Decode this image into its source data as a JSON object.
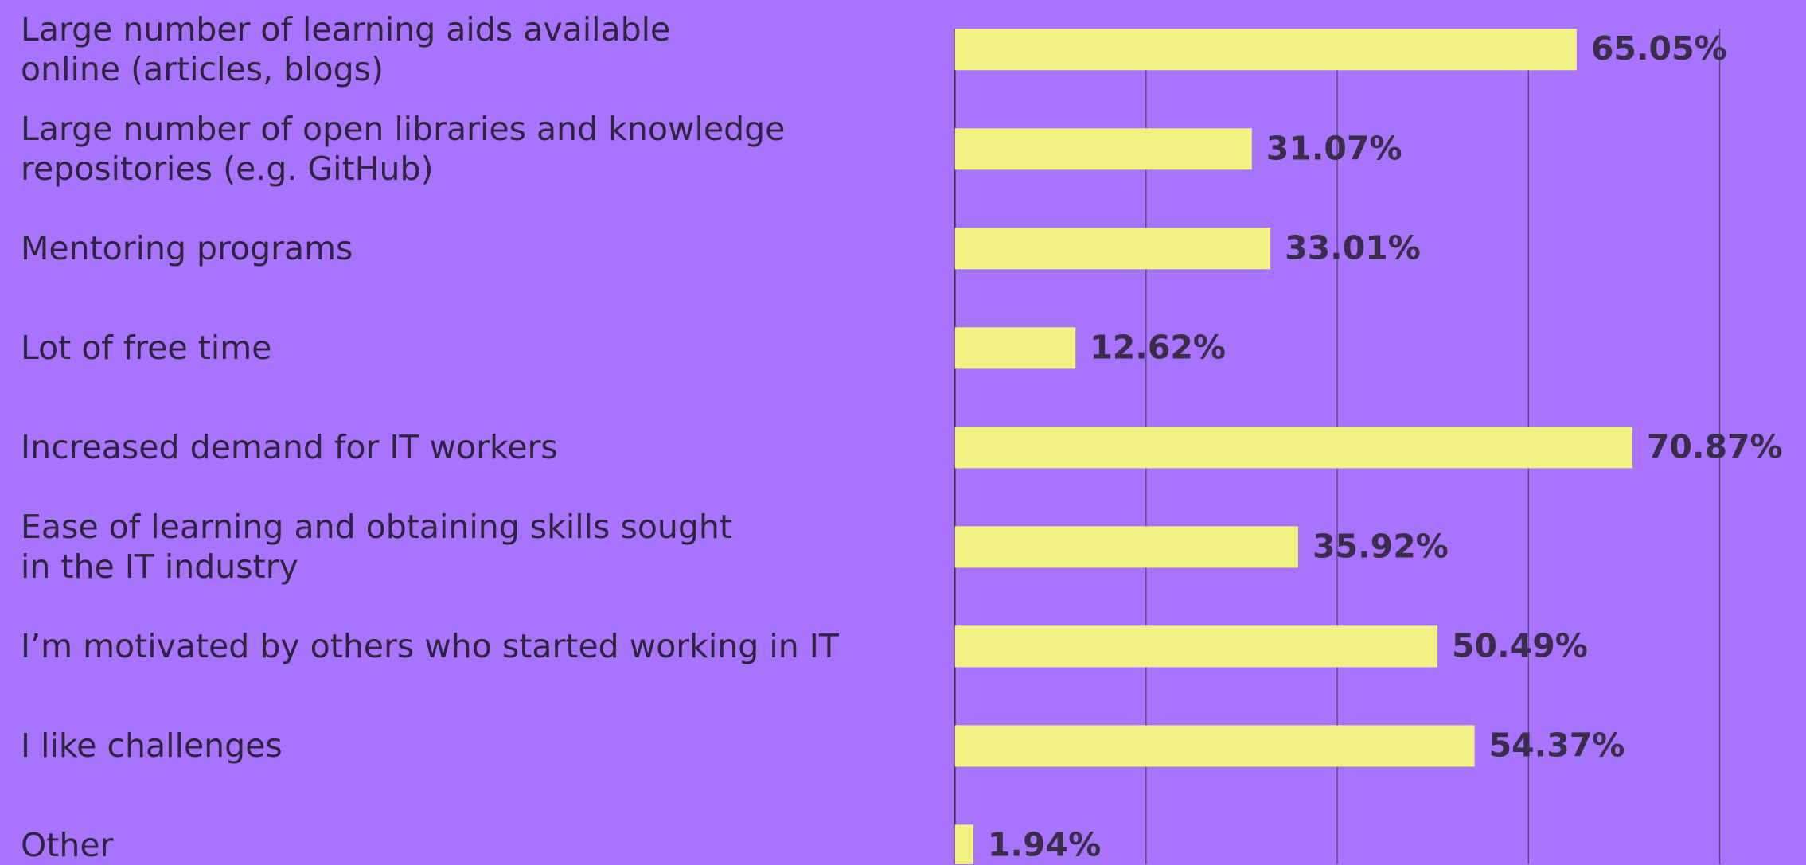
{
  "chart_data": {
    "type": "bar",
    "orientation": "horizontal",
    "categories": [
      "Large number of learning aids available\nonline (articles, blogs)",
      "Large number of open libraries and knowledge\nrepositories (e.g. GitHub)",
      "Mentoring programs",
      "Lot of free time",
      "Increased demand for IT workers",
      "Ease of learning and obtaining skills sought\nin the IT industry",
      "I’m motivated by others who started working in IT",
      "I like challenges",
      "Other"
    ],
    "values": [
      65.05,
      31.07,
      33.01,
      12.62,
      70.87,
      35.92,
      50.49,
      54.37,
      1.94
    ],
    "value_labels": [
      "65.05%",
      "31.07%",
      "33.01%",
      "12.62%",
      "70.87%",
      "35.92%",
      "50.49%",
      "54.37%",
      "1.94%"
    ],
    "color": "#f0f283",
    "xlim": [
      0,
      80
    ],
    "xticks": [
      0,
      20,
      40,
      60,
      80
    ],
    "grid": true
  }
}
